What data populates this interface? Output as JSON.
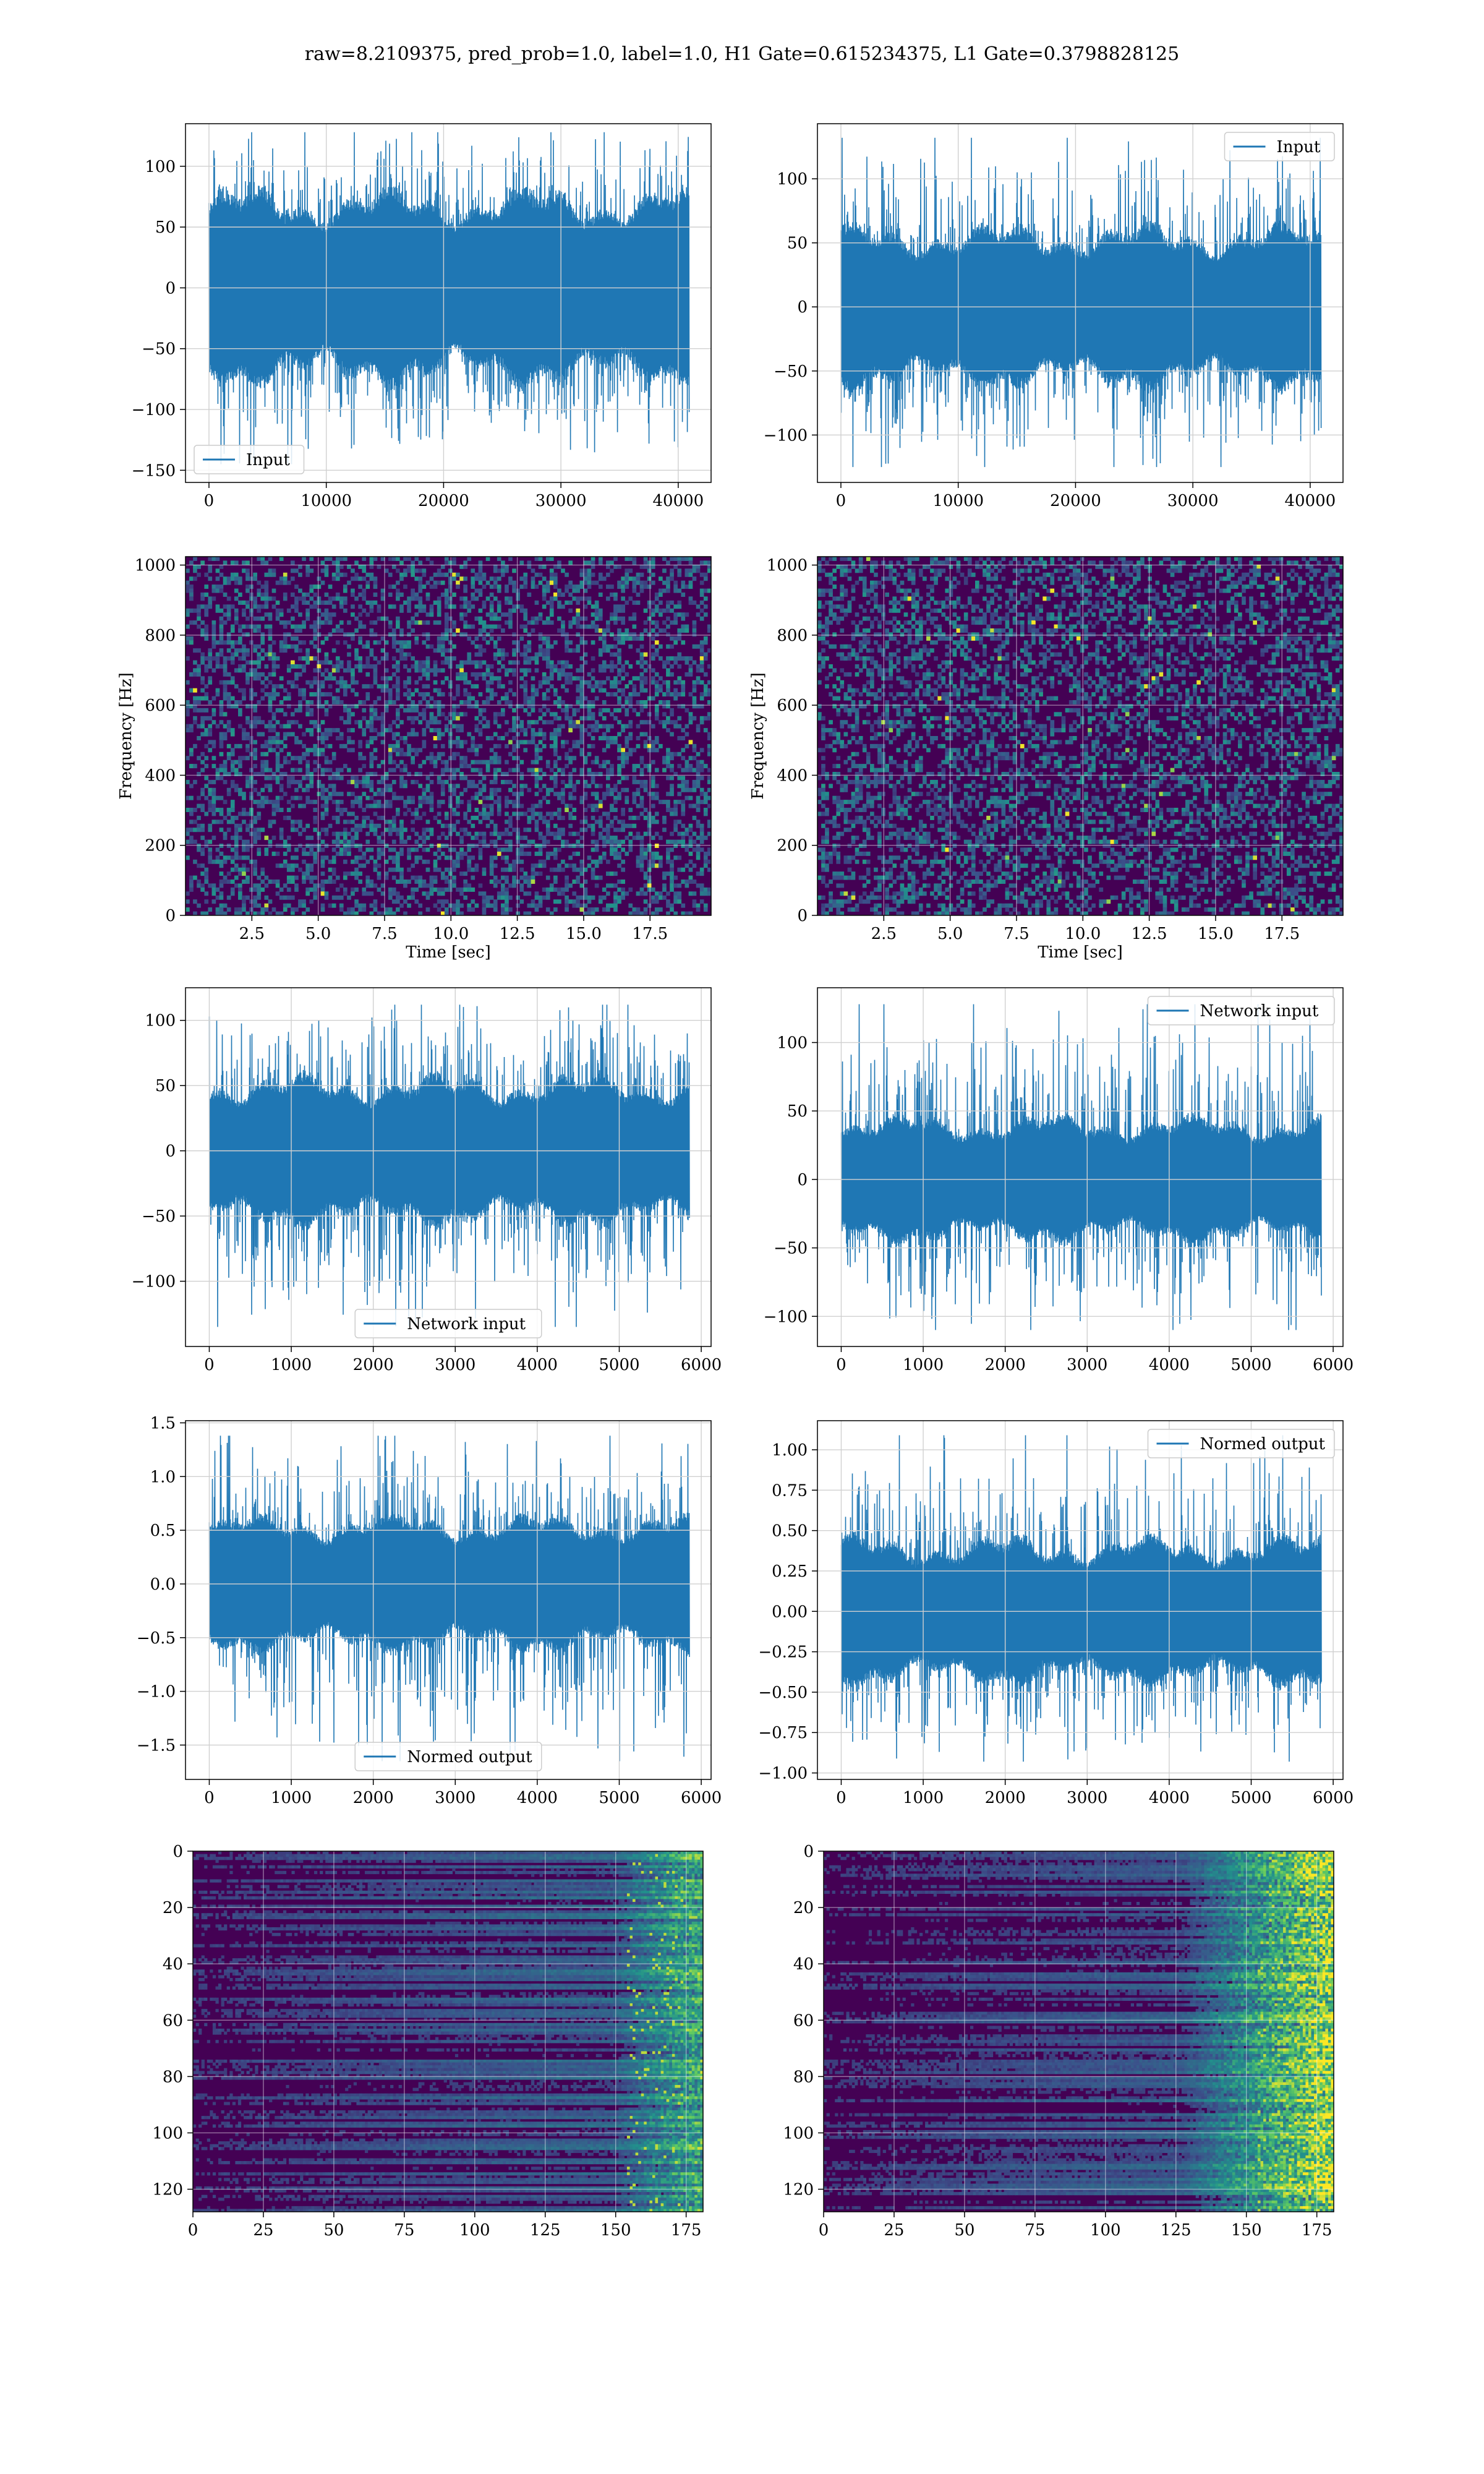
{
  "figure": {
    "suptitle": "raw=8.2109375, pred_prob=1.0, label=1.0, H1 Gate=0.615234375, L1 Gate=0.3798828125",
    "colors": {
      "line": "#1f77b4",
      "grid": "#d0d0d0",
      "viridis_dark": "#440154",
      "viridis_mid": "#21918c",
      "viridis_bright": "#fde725"
    }
  },
  "chart_data": [
    {
      "id": "h1-input",
      "type": "line",
      "series": [
        {
          "name": "Input"
        }
      ],
      "legend": "lower-left",
      "xlim": [
        -2000,
        42800
      ],
      "ylim": [
        -160,
        135
      ],
      "xticks": [
        0,
        10000,
        20000,
        30000,
        40000
      ],
      "yticks": [
        -150,
        -100,
        -50,
        0,
        50,
        100
      ],
      "signal": {
        "n": 40960,
        "band": [
          -70,
          70
        ],
        "spikes": [
          -145,
          128
        ]
      }
    },
    {
      "id": "l1-input",
      "type": "line",
      "series": [
        {
          "name": "Input"
        }
      ],
      "legend": "upper-right",
      "xlim": [
        -2000,
        42800
      ],
      "ylim": [
        -137,
        143
      ],
      "xticks": [
        0,
        10000,
        20000,
        30000,
        40000
      ],
      "yticks": [
        -100,
        -50,
        0,
        50,
        100
      ],
      "signal": {
        "n": 40960,
        "band": [
          -55,
          55
        ],
        "spikes": [
          -125,
          132
        ]
      }
    },
    {
      "id": "h1-spectrogram",
      "type": "heatmap",
      "ylabel": "Frequency [Hz]",
      "xlabel": "Time [sec]",
      "xlim": [
        0,
        19.8
      ],
      "ylim": [
        0,
        1024
      ],
      "xticks": [
        2.5,
        5.0,
        7.5,
        10.0,
        12.5,
        15.0,
        17.5
      ],
      "yticks": [
        0,
        200,
        400,
        600,
        800,
        1000
      ],
      "colormap": "viridis"
    },
    {
      "id": "l1-spectrogram",
      "type": "heatmap",
      "ylabel": "Frequency [Hz]",
      "xlabel": "Time [sec]",
      "xlim": [
        0,
        19.8
      ],
      "ylim": [
        0,
        1024
      ],
      "xticks": [
        2.5,
        5.0,
        7.5,
        10.0,
        12.5,
        15.0,
        17.5
      ],
      "yticks": [
        0,
        200,
        400,
        600,
        800,
        1000
      ],
      "colormap": "viridis"
    },
    {
      "id": "h1-network-input",
      "type": "line",
      "series": [
        {
          "name": "Network input"
        }
      ],
      "legend": "lower-center",
      "xlim": [
        -290,
        6120
      ],
      "ylim": [
        -150,
        125
      ],
      "xticks": [
        0,
        1000,
        2000,
        3000,
        4000,
        5000,
        6000
      ],
      "yticks": [
        -100,
        -50,
        0,
        50,
        100
      ],
      "signal": {
        "n": 5860,
        "band": [
          -50,
          50
        ],
        "spikes": [
          -135,
          112
        ]
      }
    },
    {
      "id": "l1-network-input",
      "type": "line",
      "series": [
        {
          "name": "Network input"
        }
      ],
      "legend": "upper-right",
      "xlim": [
        -290,
        6120
      ],
      "ylim": [
        -122,
        140
      ],
      "xticks": [
        0,
        1000,
        2000,
        3000,
        4000,
        5000,
        6000
      ],
      "yticks": [
        -100,
        -50,
        0,
        50,
        100
      ],
      "signal": {
        "n": 5860,
        "band": [
          -40,
          40
        ],
        "spikes": [
          -110,
          128
        ]
      }
    },
    {
      "id": "h1-normed-output",
      "type": "line",
      "series": [
        {
          "name": "Normed output"
        }
      ],
      "legend": "lower-center",
      "xlim": [
        -290,
        6120
      ],
      "ylim": [
        -1.82,
        1.52
      ],
      "xticks": [
        0,
        1000,
        2000,
        3000,
        4000,
        5000,
        6000
      ],
      "yticks": [
        -1.5,
        -1.0,
        -0.5,
        0.0,
        0.5,
        1.0,
        1.5
      ],
      "signal": {
        "n": 5860,
        "band": [
          -0.55,
          0.55
        ],
        "spikes": [
          -1.65,
          1.38
        ]
      }
    },
    {
      "id": "l1-normed-output",
      "type": "line",
      "series": [
        {
          "name": "Normed output"
        }
      ],
      "legend": "upper-right",
      "xlim": [
        -290,
        6120
      ],
      "ylim": [
        -1.04,
        1.18
      ],
      "xticks": [
        0,
        1000,
        2000,
        3000,
        4000,
        5000,
        6000
      ],
      "yticks": [
        -1.0,
        -0.75,
        -0.5,
        -0.25,
        0.0,
        0.25,
        0.5,
        0.75,
        1.0
      ],
      "signal": {
        "n": 5860,
        "band": [
          -0.4,
          0.4
        ],
        "spikes": [
          -0.93,
          1.09
        ]
      }
    },
    {
      "id": "h1-feature-map",
      "type": "heatmap",
      "xlim": [
        0,
        181
      ],
      "ylim": [
        128,
        0
      ],
      "xticks": [
        0,
        25,
        50,
        75,
        100,
        125,
        150,
        175
      ],
      "yticks": [
        0,
        20,
        40,
        60,
        80,
        100,
        120
      ],
      "colormap": "viridis"
    },
    {
      "id": "l1-feature-map",
      "type": "heatmap",
      "xlim": [
        0,
        181
      ],
      "ylim": [
        128,
        0
      ],
      "xticks": [
        0,
        25,
        50,
        75,
        100,
        125,
        150,
        175
      ],
      "yticks": [
        0,
        20,
        40,
        60,
        80,
        100,
        120
      ],
      "colormap": "viridis"
    }
  ]
}
